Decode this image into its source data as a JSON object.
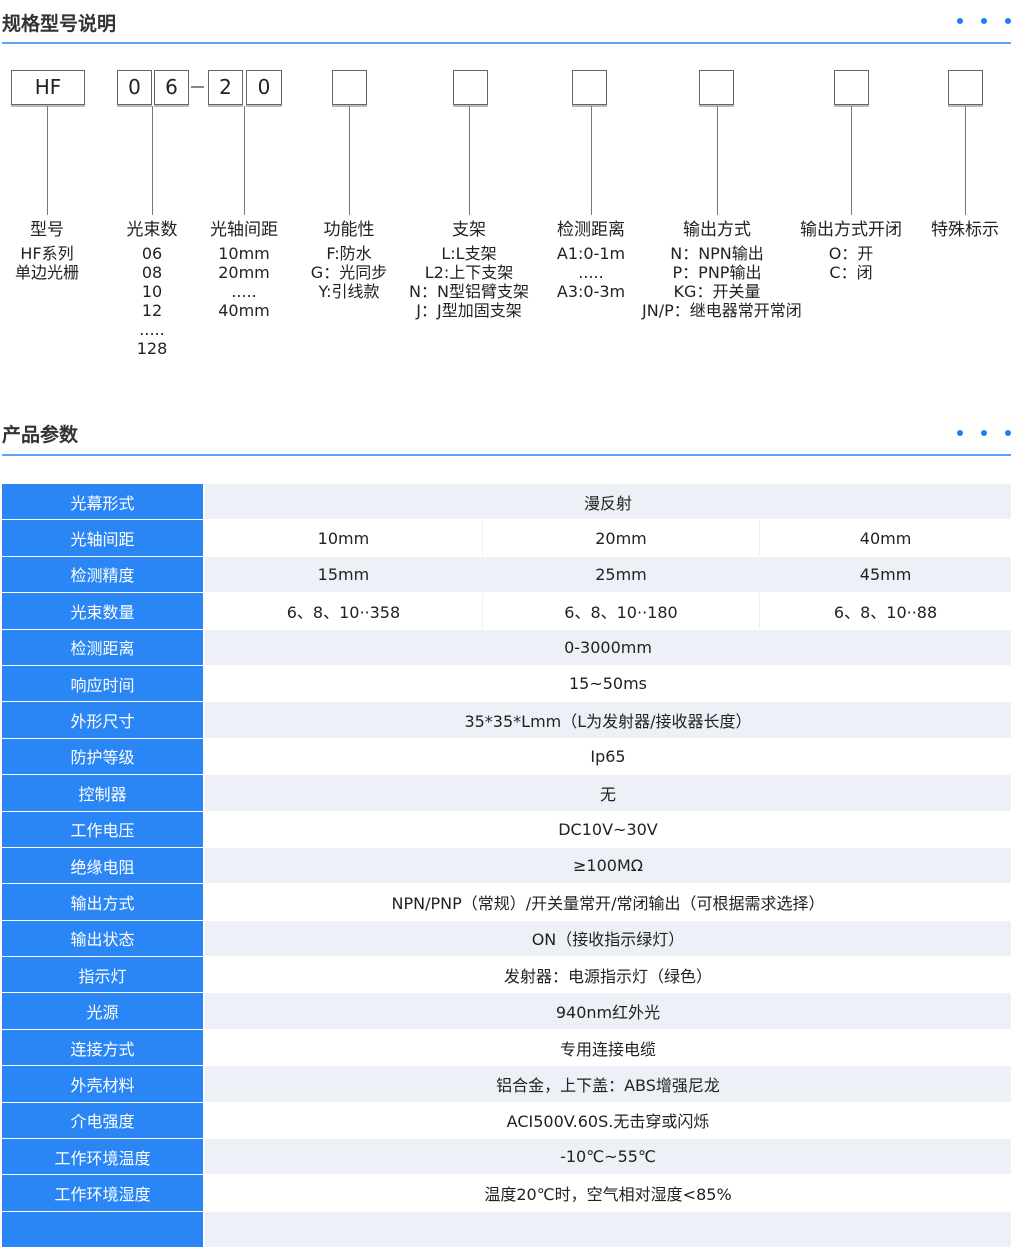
{
  "section1": {
    "title": "规格型号说明"
  },
  "code_boxes": [
    "HF",
    "0",
    "6",
    "2",
    "0",
    "",
    "",
    "",
    "",
    "",
    ""
  ],
  "columns": [
    {
      "heading": "型号",
      "values": "HF系列\n单边光栅"
    },
    {
      "heading": "光束数",
      "values": "06\n08\n10\n12\n.....\n128"
    },
    {
      "heading": "光轴间距",
      "values": "10mm\n20mm\n.....\n40mm"
    },
    {
      "heading": "功能性",
      "values": "F:防水\nG：光同步\nY:引线款"
    },
    {
      "heading": "支架",
      "values": "L:L支架\nL2:上下支架\nN：N型铝臂支架\nJ：J型加固支架"
    },
    {
      "heading": "检测距离",
      "values": "A1:0-1m\n.....\nA3:0-3m"
    },
    {
      "heading": "输出方式",
      "values": "N：NPN输出\nP：PNP输出\nKG：开关量\nJN/P：继电器常开常闭"
    },
    {
      "heading": "输出方式开闭",
      "values": "O：开\nC：闭"
    },
    {
      "heading": "特殊标示",
      "values": ""
    }
  ],
  "section2": {
    "title": "产品参数"
  },
  "params": [
    {
      "k": "光幕形式",
      "v": [
        "漫反射"
      ]
    },
    {
      "k": "光轴间距",
      "v": [
        "10mm",
        "20mm",
        "40mm"
      ]
    },
    {
      "k": "检测精度",
      "v": [
        "15mm",
        "25mm",
        "45mm"
      ]
    },
    {
      "k": "光束数量",
      "v": [
        "6、8、10··358",
        "6、8、10··180",
        "6、8、10··88"
      ]
    },
    {
      "k": "检测距离",
      "v": [
        "0-3000mm"
      ]
    },
    {
      "k": "响应时间",
      "v": [
        "15~50ms"
      ]
    },
    {
      "k": "外形尺寸",
      "v": [
        "35*35*Lmm（L为发射器/接收器长度）"
      ]
    },
    {
      "k": "防护等级",
      "v": [
        "Ip65"
      ]
    },
    {
      "k": "控制器",
      "v": [
        "无"
      ]
    },
    {
      "k": "工作电压",
      "v": [
        "DC10V~30V"
      ]
    },
    {
      "k": "绝缘电阻",
      "v": [
        "≥100MΩ"
      ]
    },
    {
      "k": "输出方式",
      "v": [
        "NPN/PNP（常规）/开关量常开/常闭输出（可根据需求选择）"
      ]
    },
    {
      "k": "输出状态",
      "v": [
        "ON（接收指示绿灯）"
      ]
    },
    {
      "k": "指示灯",
      "v": [
        "发射器：电源指示灯（绿色）"
      ]
    },
    {
      "k": "光源",
      "v": [
        "940nm红外光"
      ]
    },
    {
      "k": "连接方式",
      "v": [
        "专用连接电缆"
      ]
    },
    {
      "k": "外壳材料",
      "v": [
        "铝合金，上下盖：ABS增强尼龙"
      ]
    },
    {
      "k": "介电强度",
      "v": [
        "ACI500V.60S.无击穿或闪烁"
      ]
    },
    {
      "k": "工作环境温度",
      "v": [
        "-10℃~55℃"
      ]
    },
    {
      "k": "工作环境湿度",
      "v": [
        "温度20℃时，空气相对湿度<85%"
      ]
    },
    {
      "k": "",
      "v": [
        ""
      ]
    }
  ],
  "colors": {
    "accent": "#2b86f5",
    "row_alt": "#edf0f6"
  }
}
